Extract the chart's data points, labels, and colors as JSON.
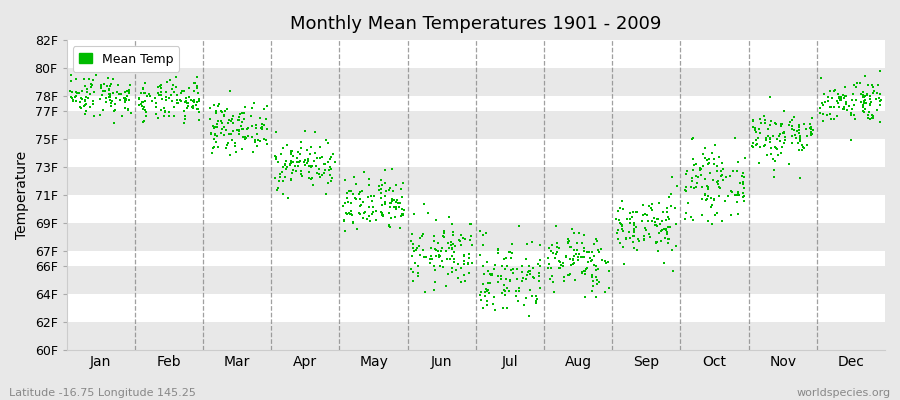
{
  "title": "Monthly Mean Temperatures 1901 - 2009",
  "ylabel": "Temperature",
  "xlabel_labels": [
    "Jan",
    "Feb",
    "Mar",
    "Apr",
    "May",
    "Jun",
    "Jul",
    "Aug",
    "Sep",
    "Oct",
    "Nov",
    "Dec"
  ],
  "subtitle_left": "Latitude -16.75 Longitude 145.25",
  "subtitle_right": "worldspecies.org",
  "ylim": [
    60,
    82
  ],
  "yticks": [
    60,
    62,
    64,
    66,
    67,
    69,
    71,
    73,
    75,
    77,
    78,
    80,
    82
  ],
  "ytick_labels": [
    "60F",
    "62F",
    "64F",
    "66F",
    "67F",
    "69F",
    "71F",
    "73F",
    "75F",
    "77F",
    "78F",
    "80F",
    "82F"
  ],
  "band_colors": [
    "#e8e8e8",
    "#ffffff"
  ],
  "dot_color": "#00bb00",
  "dot_marker": "s",
  "dot_size": 3,
  "bg_color": "#e8e8e8",
  "legend_label": "Mean Temp",
  "n_years": 109,
  "monthly_means": [
    78.1,
    77.6,
    75.8,
    73.2,
    70.2,
    66.8,
    65.2,
    66.3,
    68.8,
    71.8,
    75.2,
    77.7
  ],
  "monthly_stds": [
    0.75,
    0.75,
    0.85,
    0.9,
    1.05,
    1.2,
    1.4,
    1.1,
    1.1,
    1.2,
    1.0,
    0.8
  ],
  "seed": 42
}
